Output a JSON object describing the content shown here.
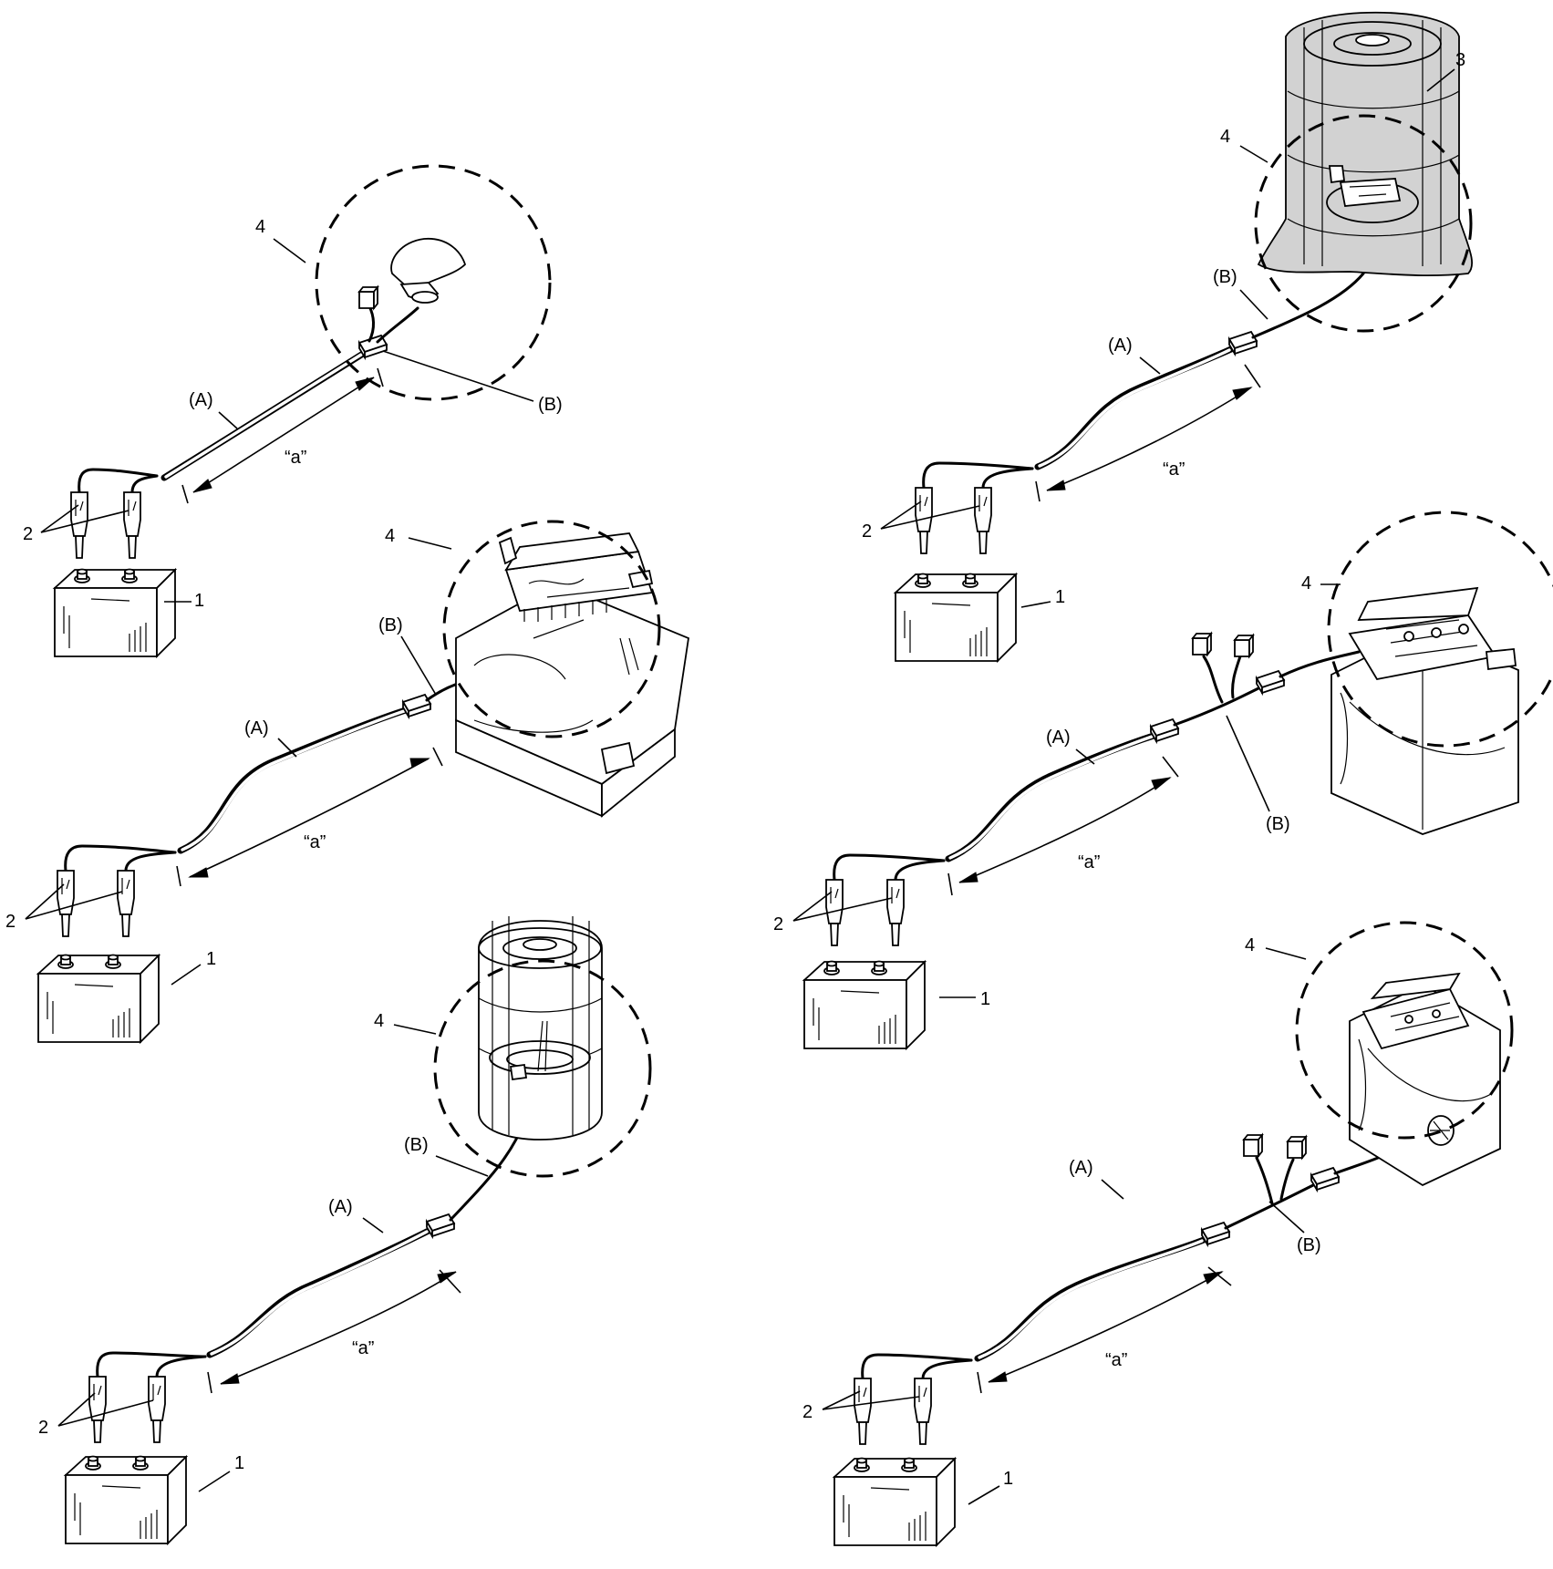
{
  "labels": {
    "battery": "1",
    "lead_clips": "2",
    "cover": "3",
    "deploy_zone": "4",
    "harness_a": "(A)",
    "harness_b": "(B)",
    "distance": "“a”"
  },
  "panels": [
    {
      "id": "p1"
    },
    {
      "id": "p2"
    },
    {
      "id": "p3"
    },
    {
      "id": "p4"
    },
    {
      "id": "p5"
    },
    {
      "id": "p6"
    }
  ]
}
